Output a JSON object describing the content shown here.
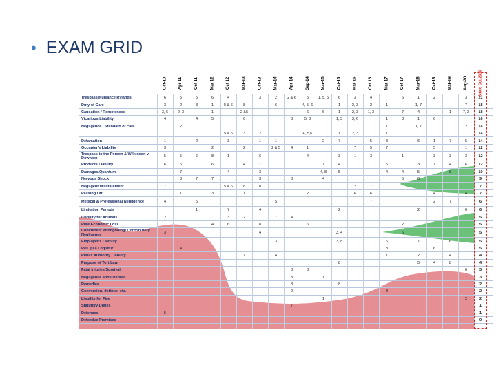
{
  "slide": {
    "bullet": "•",
    "title": "EXAM GRID"
  },
  "colors": {
    "header_text": "#1f3a68",
    "bullet": "#3d7ec7",
    "red_blob": "#e07b82",
    "green_blob": "#5cba6a",
    "since_border": "#d9281f"
  },
  "columns": [
    "Oct-10",
    "Apr 11",
    "Oct 11",
    "Mar 12",
    "Oct 12",
    "Mar-13",
    "Oct-13",
    "Mar-14",
    "Apr-14",
    "Sep-14",
    "Mar-15",
    "Oct-15",
    "Mar 16",
    "Oct 16",
    "Mar 17",
    "Oct 17",
    "Mar-18",
    "Oct-18",
    "Mar-19",
    "Aug-20",
    "Since Oct 2010"
  ],
  "rows": [
    {
      "label": "Trespass/Nuisance/Rylands",
      "cells": [
        "6",
        "5",
        "5",
        "6",
        "4",
        "",
        "3",
        "2",
        "2 & 6",
        "5",
        "1, 5, 6",
        "6",
        "3",
        "4",
        "",
        "6",
        "1",
        "2",
        "",
        "3",
        "21"
      ]
    },
    {
      "label": "Duty of Care",
      "cells": [
        "3",
        "2",
        "3",
        "1",
        "5 & 6",
        "8",
        "",
        "6",
        "",
        "4, 5, 6",
        "",
        "1",
        "2, 3",
        "2",
        "1",
        "",
        "1, 7",
        "",
        "",
        "7",
        "18"
      ]
    },
    {
      "label": "Causation / Remoteness",
      "cells": [
        "3, 6",
        "2, 3",
        "",
        "1",
        "",
        "2 &5",
        "",
        "",
        "",
        "6",
        "6",
        "1",
        "2, 3",
        "1, 3",
        "",
        "7",
        "4",
        "",
        "1",
        "7, 2",
        "18"
      ]
    },
    {
      "label": "Vicarious Liability",
      "cells": [
        "4",
        "",
        "4",
        "5",
        "",
        "6",
        "",
        "",
        "3",
        "5, 8",
        "",
        "1, 3",
        "3, 6",
        "",
        "1",
        "3",
        "1",
        "6",
        "",
        "",
        "16"
      ]
    },
    {
      "label": "Negligence / Standard of care",
      "cells": [
        "",
        "2",
        "",
        "",
        "",
        "",
        "",
        "",
        "",
        "",
        "",
        "",
        "",
        "",
        "1",
        "",
        "1, 7",
        "",
        "",
        "2",
        "14"
      ]
    },
    {
      "label": "",
      "cells": [
        "",
        "",
        "",
        "",
        "5 & 6",
        "3",
        "2",
        "",
        "",
        "4, 5,6",
        "",
        "1",
        "2, 3",
        "",
        "1",
        "",
        "",
        "",
        "",
        "",
        "14"
      ]
    },
    {
      "label": "Defamation",
      "cells": [
        "1",
        "",
        "2",
        "",
        "3",
        "",
        "1",
        "1",
        "",
        "",
        "2",
        "7",
        "",
        "5",
        "3",
        "",
        "6",
        "1",
        "7",
        "5",
        "14"
      ]
    },
    {
      "label": "Occupier's Liability",
      "cells": [
        "3",
        "",
        "",
        "2",
        "",
        "2",
        "",
        "2 & 5",
        "4",
        "1",
        "",
        "",
        "7",
        "5",
        "7",
        "",
        "",
        "5",
        "",
        "1",
        "12"
      ]
    },
    {
      "label": "Trespass to the Person & Wilkinson v Downton",
      "cells": [
        "5",
        "5",
        "6",
        "8",
        "1",
        "",
        "6",
        "",
        "",
        "4",
        "",
        "3",
        "1",
        "3",
        "",
        "1",
        "",
        "3",
        "3",
        "3",
        "12"
      ]
    },
    {
      "label": "Products Liability",
      "cells": [
        "6",
        "6",
        "",
        "6",
        "",
        "4",
        "7",
        "",
        "",
        "",
        "7",
        "4",
        "",
        "",
        "5",
        "",
        "3",
        "7",
        "4",
        "6",
        "12"
      ]
    },
    {
      "label": "Damages/Quantum",
      "cells": [
        "",
        "7",
        "",
        "",
        "4",
        "",
        "3",
        "",
        "",
        "",
        "4, 8",
        "5",
        "",
        "",
        "4",
        "4",
        "5",
        "",
        "8",
        "",
        "10"
      ]
    },
    {
      "label": "Nervous Shock",
      "cells": [
        "",
        "3",
        "7",
        "7",
        "",
        "",
        "3",
        "",
        "3",
        "",
        "4",
        "",
        "",
        "",
        "",
        "5",
        "6",
        "",
        "",
        "",
        "9"
      ]
    },
    {
      "label": "Negligent Misstatement",
      "cells": [
        "7",
        "",
        "",
        "",
        "5 & 6",
        "8",
        "8",
        "",
        "",
        "",
        "",
        "",
        "2",
        "7",
        "",
        "",
        "",
        "",
        "",
        "",
        "7"
      ]
    },
    {
      "label": "Passing Off",
      "cells": [
        "",
        "1",
        "",
        "3",
        "",
        "1",
        "",
        "",
        "",
        "2",
        "",
        "",
        "6",
        "6",
        "",
        "",
        "",
        "4",
        "",
        "4",
        "7"
      ]
    },
    {
      "label": "Medical & Professional Negligence",
      "cells": [
        "4",
        "",
        "5",
        "",
        "",
        "",
        "",
        "5",
        "",
        "",
        "",
        "",
        "",
        "7",
        "",
        "",
        "",
        "2",
        "7",
        "",
        "6"
      ]
    },
    {
      "label": "Limitation Periods",
      "cells": [
        "",
        "",
        "1",
        "",
        "7",
        "",
        "4",
        "",
        "",
        "",
        "",
        "2",
        "",
        "",
        "",
        "",
        "2",
        "",
        "",
        "6",
        "6"
      ]
    },
    {
      "label": "Liability for Animals",
      "cells": [
        "2",
        "",
        "",
        "",
        "3",
        "2",
        "",
        "7",
        "4",
        "",
        "",
        "",
        "",
        "",
        "",
        "",
        "",
        "",
        "",
        "",
        "5"
      ]
    },
    {
      "label": "Pure Economic Loss",
      "cells": [
        "",
        "",
        "",
        "4",
        "6",
        "",
        "8",
        "",
        "",
        "6",
        "",
        "",
        "",
        "",
        "",
        "2",
        "",
        "",
        "",
        "",
        "5"
      ]
    },
    {
      "label": "Concurrent Wrongdoing/ Contributory Negligence",
      "cells": [
        "3",
        "",
        "",
        "",
        "",
        "",
        "4",
        "",
        "",
        "",
        "",
        "3, 4",
        "",
        "",
        "",
        "6",
        "",
        "",
        "",
        "",
        "5"
      ]
    },
    {
      "label": "Employer's Liability",
      "cells": [
        "",
        "",
        "",
        "",
        "",
        "",
        "",
        "3",
        "",
        "",
        "",
        "3, 8",
        "",
        "",
        "6",
        "",
        "7",
        "",
        "6",
        "",
        "5"
      ]
    },
    {
      "label": "Res Ipsa Loquitur",
      "cells": [
        "",
        "4",
        "",
        "",
        "",
        "",
        "",
        "1",
        "",
        "",
        "",
        "",
        "",
        "",
        "8",
        "",
        "",
        "6",
        "",
        "1",
        "5"
      ]
    },
    {
      "label": "Public Authority Liability",
      "cells": [
        "",
        "",
        "",
        "",
        "",
        "7",
        "",
        "4",
        "",
        "",
        "",
        "",
        "",
        "",
        "1",
        "",
        "2",
        "",
        "4",
        "",
        "4"
      ]
    },
    {
      "label": "Purpose of Tort Law",
      "cells": [
        "",
        "",
        "",
        "",
        "",
        "",
        "",
        "",
        "",
        "",
        "",
        "8",
        "",
        "",
        "",
        "",
        "5",
        "4",
        "8",
        "",
        "4"
      ]
    },
    {
      "label": "Fatal Injuries/Survival",
      "cells": [
        "",
        "",
        "",
        "",
        "",
        "",
        "",
        "",
        "3",
        "3",
        "",
        "",
        "",
        "",
        "",
        "",
        "",
        "",
        "",
        "6",
        "3"
      ]
    },
    {
      "label": "Negligence and Children",
      "cells": [
        "",
        "",
        "",
        "",
        "",
        "",
        "",
        "",
        "3",
        "",
        "1",
        "",
        "",
        "",
        "",
        "",
        "",
        "",
        "",
        "7",
        "3"
      ]
    },
    {
      "label": "Remedies",
      "cells": [
        "",
        "",
        "",
        "",
        "",
        "",
        "",
        "",
        "3",
        "",
        "",
        "8",
        "",
        "",
        "",
        "",
        "",
        "",
        "",
        "",
        "2"
      ]
    },
    {
      "label": "Conversion, detinue, etc.",
      "cells": [
        "",
        "",
        "",
        "",
        "",
        "",
        "",
        "",
        "2",
        "",
        "",
        "",
        "",
        "",
        "3",
        "",
        "",
        "",
        "",
        "",
        "2"
      ]
    },
    {
      "label": "Liability for Fire",
      "cells": [
        "",
        "",
        "",
        "",
        "",
        "",
        "",
        "",
        "",
        "",
        "1",
        "",
        "",
        "",
        "",
        "",
        "",
        "",
        "",
        "2",
        "2"
      ]
    },
    {
      "label": "Statutory Duties",
      "cells": [
        "",
        "",
        "",
        "",
        "",
        "",
        "",
        "",
        "7",
        "",
        "",
        "",
        "",
        "",
        "",
        "",
        "",
        "",
        "",
        "",
        "1"
      ]
    },
    {
      "label": "Defences",
      "cells": [
        "5",
        "",
        "",
        "",
        "",
        "",
        "",
        "",
        "",
        "",
        "",
        "",
        "",
        "",
        "",
        "",
        "",
        "",
        "",
        "",
        "1"
      ]
    },
    {
      "label": "Defective Premises",
      "cells": [
        "",
        "",
        "",
        "",
        "",
        "",
        "",
        "",
        "",
        "",
        "",
        "",
        "",
        "",
        "",
        "",
        "",
        "",
        "",
        "",
        "0"
      ]
    }
  ]
}
